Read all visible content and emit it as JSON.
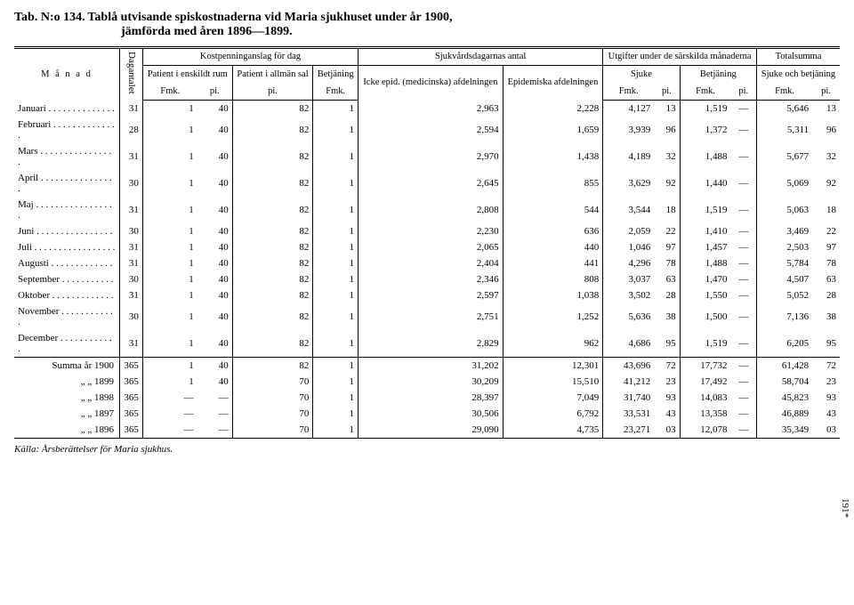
{
  "title_main": "Tab. N:o 134.",
  "title_rest": "Tablå utvisande spiskostnaderna vid Maria sjukhuset under år 1900,",
  "subtitle": "jämförda med åren 1896—1899.",
  "col_month": "M å n a d",
  "col_dag": "Dagantalet",
  "grp_kost": "Kostpenninganslag för dag",
  "grp_sjuk": "Sjukvårdsdagarnas antal",
  "grp_utg": "Utgifter under de särskilda månaderna",
  "grp_tot": "Totalsumma",
  "sub_p1": "Patient i enskildt rum",
  "sub_p2": "Patient i allmän sal",
  "sub_betj": "Betjäning",
  "sub_icke": "Icke epid. (medicinska) afdelningen",
  "sub_epid": "Epidemiska afdelningen",
  "sub_sjuke": "Sjuke",
  "sub_betj2": "Betjäning",
  "sub_sjukeoch": "Sjuke och betjäning",
  "u_fmk": "Fmk.",
  "u_pi": "pi.",
  "rows": [
    {
      "m": "Januari",
      "dots": " . . . . . . . . . . . . . .",
      "d": "31",
      "p1a": "1",
      "p1b": "40",
      "p2": "82",
      "bt": "1",
      "icke": "2,963",
      "epid": "2,228",
      "sj_a": "4,127",
      "sj_b": "13",
      "be_a": "1,519",
      "be_b": "—",
      "to_a": "5,646",
      "to_b": "13"
    },
    {
      "m": "Februari",
      "dots": " . . . . . . . . . . . . . .",
      "d": "28",
      "p1a": "1",
      "p1b": "40",
      "p2": "82",
      "bt": "1",
      "icke": "2,594",
      "epid": "1,659",
      "sj_a": "3,939",
      "sj_b": "96",
      "be_a": "1,372",
      "be_b": "—",
      "to_a": "5,311",
      "to_b": "96"
    },
    {
      "m": "Mars",
      "dots": " . . . . . . . . . . . . . . . .",
      "d": "31",
      "p1a": "1",
      "p1b": "40",
      "p2": "82",
      "bt": "1",
      "icke": "2,970",
      "epid": "1,438",
      "sj_a": "4,189",
      "sj_b": "32",
      "be_a": "1,488",
      "be_b": "—",
      "to_a": "5,677",
      "to_b": "32"
    },
    {
      "m": "April",
      "dots": " . . . . . . . . . . . . . . . .",
      "d": "30",
      "p1a": "1",
      "p1b": "40",
      "p2": "82",
      "bt": "1",
      "icke": "2,645",
      "epid": "855",
      "sj_a": "3,629",
      "sj_b": "92",
      "be_a": "1,440",
      "be_b": "—",
      "to_a": "5,069",
      "to_b": "92"
    },
    {
      "m": "Maj",
      "dots": " . . . . . . . . . . . . . . . . .",
      "d": "31",
      "p1a": "1",
      "p1b": "40",
      "p2": "82",
      "bt": "1",
      "icke": "2,808",
      "epid": "544",
      "sj_a": "3,544",
      "sj_b": "18",
      "be_a": "1,519",
      "be_b": "—",
      "to_a": "5,063",
      "to_b": "18"
    },
    {
      "m": "Juni",
      "dots": " . . . . . . . . . . . . . . . .",
      "d": "30",
      "p1a": "1",
      "p1b": "40",
      "p2": "82",
      "bt": "1",
      "icke": "2,230",
      "epid": "636",
      "sj_a": "2,059",
      "sj_b": "22",
      "be_a": "1,410",
      "be_b": "—",
      "to_a": "3,469",
      "to_b": "22"
    },
    {
      "m": "Juli",
      "dots": " . . . . . . . . . . . . . . . . .",
      "d": "31",
      "p1a": "1",
      "p1b": "40",
      "p2": "82",
      "bt": "1",
      "icke": "2,065",
      "epid": "440",
      "sj_a": "1,046",
      "sj_b": "97",
      "be_a": "1,457",
      "be_b": "—",
      "to_a": "2,503",
      "to_b": "97"
    },
    {
      "m": "Augusti",
      "dots": " . . . . . . . . . . . . .",
      "d": "31",
      "p1a": "1",
      "p1b": "40",
      "p2": "82",
      "bt": "1",
      "icke": "2,404",
      "epid": "441",
      "sj_a": "4,296",
      "sj_b": "78",
      "be_a": "1,488",
      "be_b": "—",
      "to_a": "5,784",
      "to_b": "78"
    },
    {
      "m": "September",
      "dots": " . . . . . . . . . . .",
      "d": "30",
      "p1a": "1",
      "p1b": "40",
      "p2": "82",
      "bt": "1",
      "icke": "2,346",
      "epid": "808",
      "sj_a": "3,037",
      "sj_b": "63",
      "be_a": "1,470",
      "be_b": "—",
      "to_a": "4,507",
      "to_b": "63"
    },
    {
      "m": "Oktober",
      "dots": " . . . . . . . . . . . . .",
      "d": "31",
      "p1a": "1",
      "p1b": "40",
      "p2": "82",
      "bt": "1",
      "icke": "2,597",
      "epid": "1,038",
      "sj_a": "3,502",
      "sj_b": "28",
      "be_a": "1,550",
      "be_b": "—",
      "to_a": "5,052",
      "to_b": "28"
    },
    {
      "m": "November",
      "dots": " . . . . . . . . . . . .",
      "d": "30",
      "p1a": "1",
      "p1b": "40",
      "p2": "82",
      "bt": "1",
      "icke": "2,751",
      "epid": "1,252",
      "sj_a": "5,636",
      "sj_b": "38",
      "be_a": "1,500",
      "be_b": "—",
      "to_a": "7,136",
      "to_b": "38"
    },
    {
      "m": "December",
      "dots": " . . . . . . . . . . . .",
      "d": "31",
      "p1a": "1",
      "p1b": "40",
      "p2": "82",
      "bt": "1",
      "icke": "2,829",
      "epid": "962",
      "sj_a": "4,686",
      "sj_b": "95",
      "be_a": "1,519",
      "be_b": "—",
      "to_a": "6,205",
      "to_b": "95"
    }
  ],
  "summa": [
    {
      "m": "Summa år 1900",
      "d": "365",
      "p1a": "1",
      "p1b": "40",
      "p2": "82",
      "bt": "1",
      "icke": "31,202",
      "epid": "12,301",
      "sj_a": "43,696",
      "sj_b": "72",
      "be_a": "17,732",
      "be_b": "—",
      "to_a": "61,428",
      "to_b": "72"
    },
    {
      "m": "„        „    1899",
      "d": "365",
      "p1a": "1",
      "p1b": "40",
      "p2": "70",
      "bt": "1",
      "icke": "30,209",
      "epid": "15,510",
      "sj_a": "41,212",
      "sj_b": "23",
      "be_a": "17,492",
      "be_b": "—",
      "to_a": "58,704",
      "to_b": "23"
    },
    {
      "m": "„        „    1898",
      "d": "365",
      "p1a": "—",
      "p1b": "—",
      "p2": "70",
      "bt": "1",
      "icke": "28,397",
      "epid": "7,049",
      "sj_a": "31,740",
      "sj_b": "93",
      "be_a": "14,083",
      "be_b": "—",
      "to_a": "45,823",
      "to_b": "93"
    },
    {
      "m": "„        „    1897",
      "d": "365",
      "p1a": "—",
      "p1b": "—",
      "p2": "70",
      "bt": "1",
      "icke": "30,506",
      "epid": "6,792",
      "sj_a": "33,531",
      "sj_b": "43",
      "be_a": "13,358",
      "be_b": "—",
      "to_a": "46,889",
      "to_b": "43"
    },
    {
      "m": "„        „    1896",
      "d": "365",
      "p1a": "—",
      "p1b": "—",
      "p2": "70",
      "bt": "1",
      "icke": "29,090",
      "epid": "4,735",
      "sj_a": "23,271",
      "sj_b": "03",
      "be_a": "12,078",
      "be_b": "—",
      "to_a": "35,349",
      "to_b": "03"
    }
  ],
  "footer": "Källa:  Årsberättelser för Maria sjukhus.",
  "pagenum": "191*"
}
